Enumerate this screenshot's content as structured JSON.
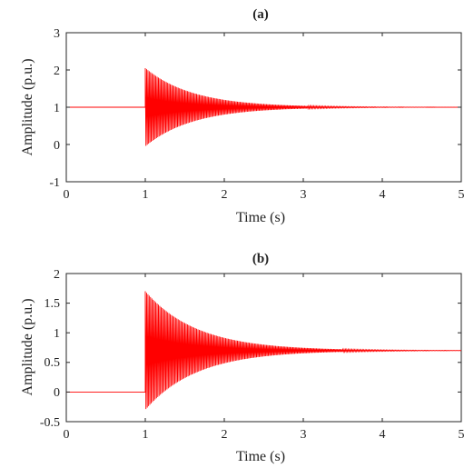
{
  "chart_data": [
    {
      "type": "line",
      "title": "(a)",
      "xlabel": "Time (s)",
      "ylabel": "Amplitude (p.u.)",
      "xlim": [
        0,
        5
      ],
      "ylim": [
        -1,
        3
      ],
      "xticks": [
        "0",
        "1",
        "2",
        "3",
        "4",
        "5"
      ],
      "yticks": [
        "-1",
        "0",
        "1",
        "2",
        "3"
      ],
      "grid": false,
      "series": [
        {
          "color": "#ff0000",
          "step_time": 1.0,
          "initial_level": 1.0,
          "final_level": 1.0,
          "initial_oscillation_amplitude": 1.05,
          "decay_time_constant": 0.6,
          "oscillation_frequency_hz": 60
        }
      ]
    },
    {
      "type": "line",
      "title": "(b)",
      "xlabel": "Time (s)",
      "ylabel": "Amplitude (p.u.)",
      "xlim": [
        0,
        5
      ],
      "ylim": [
        -0.5,
        2
      ],
      "xticks": [
        "0",
        "1",
        "2",
        "3",
        "4",
        "5"
      ],
      "yticks": [
        "-0.5",
        "0",
        "0.5",
        "1",
        "1.5",
        "2"
      ],
      "grid": false,
      "series": [
        {
          "color": "#ff0000",
          "step_time": 1.0,
          "initial_level": 0.0,
          "final_level": 0.7,
          "initial_oscillation_amplitude": 1.0,
          "decay_time_constant": 0.65,
          "oscillation_frequency_hz": 60
        }
      ]
    }
  ]
}
